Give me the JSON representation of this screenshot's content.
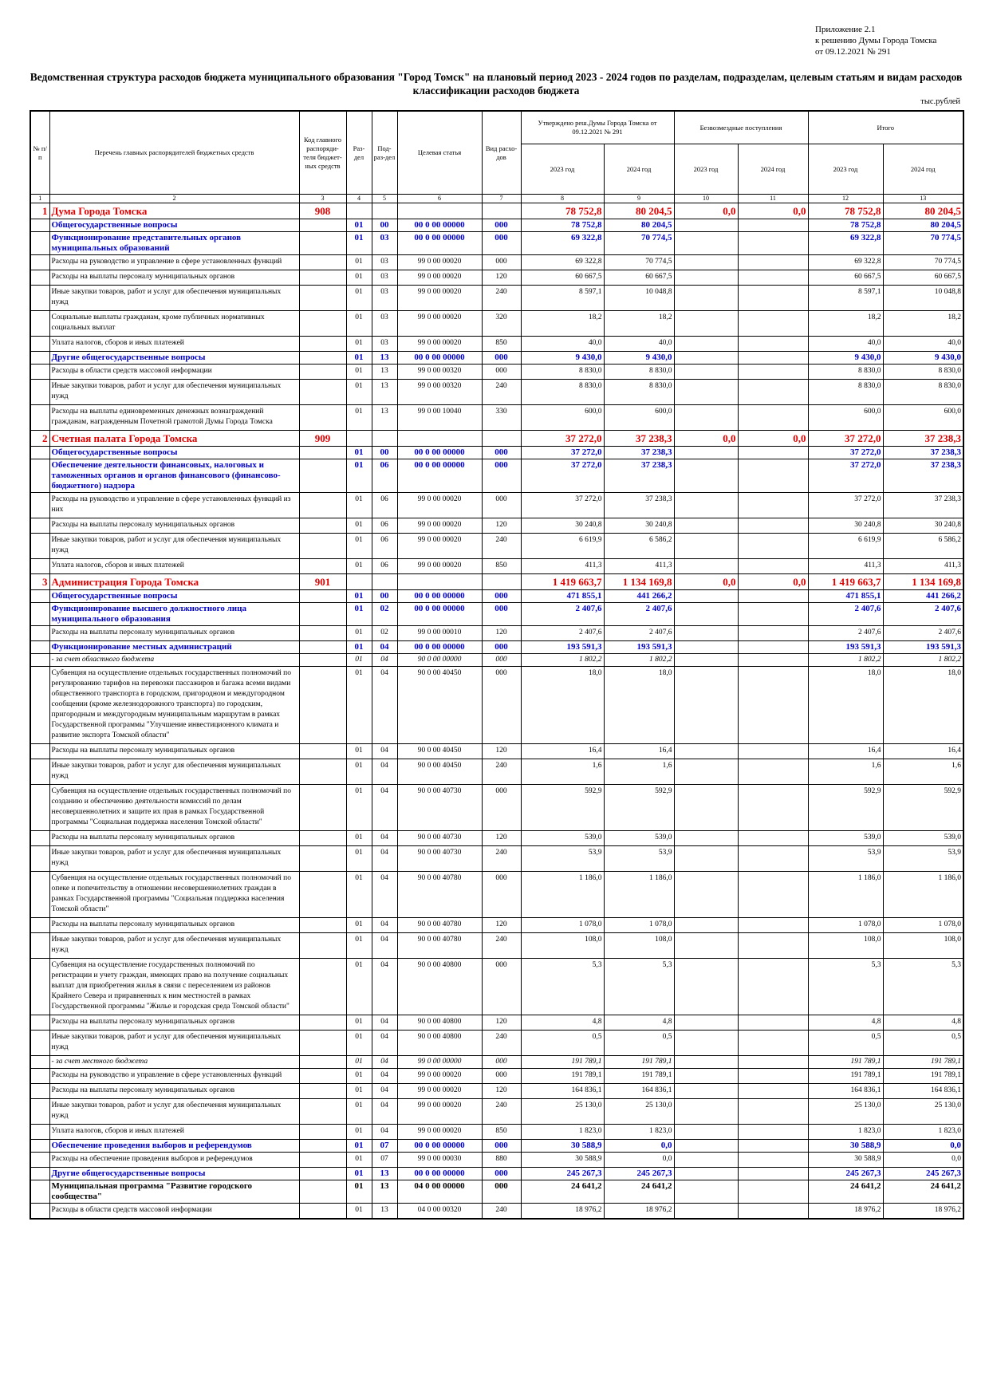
{
  "header": {
    "lines": [
      "Приложение 2.1",
      "к решению Думы Города Томска",
      "от 09.12.2021 № 291"
    ],
    "title": "Ведомственная структура расходов бюджета муниципального образования \"Город Томск\" на плановый период 2023 - 2024 годов по разделам, подразделам, целевым статьям и видам расходов классификации расходов бюджета",
    "unit": "тыс.рублей"
  },
  "table": {
    "columns": [
      "№ п/п",
      "Перечень главных распорядителей бюджетных средств",
      "Код главного распоряди-теля бюджет-ных средств",
      "Раз-дел",
      "Под-раз-дел",
      "Целевая статья",
      "Вид расхо-дов"
    ],
    "groups": [
      {
        "label": "Утверждено реш.Думы Города Томска от 09.12.2021 № 291",
        "years": [
          "2023 год",
          "2024 год"
        ]
      },
      {
        "label": "Безвозмездные поступления",
        "years": [
          "2023 год",
          "2024 год"
        ]
      },
      {
        "label": "Итого",
        "years": [
          "2023 год",
          "2024 год"
        ]
      }
    ],
    "numbers": [
      1,
      2,
      3,
      4,
      5,
      6,
      7,
      8,
      9,
      10,
      11,
      12,
      13
    ],
    "rows": [
      {
        "style": "chief",
        "cells": [
          "1",
          "Дума Города Томска",
          "908",
          null,
          null,
          null,
          null,
          "78 752,8",
          "80 204,5",
          "0,0",
          "0,0",
          "78 752,8",
          "80 204,5"
        ]
      },
      {
        "style": "blue",
        "cells": [
          null,
          "Общегосударственные вопросы",
          null,
          "01",
          "00",
          "00 0 00 00000",
          "000",
          "78 752,8",
          "80 204,5",
          null,
          null,
          "78 752,8",
          "80 204,5"
        ]
      },
      {
        "style": "blue",
        "cells": [
          null,
          "Функционирование представительных органов муниципальных образований",
          null,
          "01",
          "03",
          "00 0 00 00000",
          "000",
          "69 322,8",
          "70 774,5",
          null,
          null,
          "69 322,8",
          "70 774,5"
        ]
      },
      {
        "style": "item",
        "cells": [
          null,
          "Расходы на руководство и управление в сфере установленных функций",
          null,
          "01",
          "03",
          "99 0 00 00020",
          "000",
          "69 322,8",
          "70 774,5",
          null,
          null,
          "69 322,8",
          "70 774,5"
        ]
      },
      {
        "style": "item",
        "cells": [
          null,
          "Расходы на выплаты персоналу муниципальных органов",
          null,
          "01",
          "03",
          "99 0 00 00020",
          "120",
          "60 667,5",
          "60 667,5",
          null,
          null,
          "60 667,5",
          "60 667,5"
        ]
      },
      {
        "style": "item",
        "cells": [
          null,
          "Иные закупки товаров, работ и услуг для обеспечения муниципальных нужд",
          null,
          "01",
          "03",
          "99 0 00 00020",
          "240",
          "8 597,1",
          "10 048,8",
          null,
          null,
          "8 597,1",
          "10 048,8"
        ]
      },
      {
        "style": "item",
        "cells": [
          null,
          "Социальные выплаты гражданам, кроме публичных нормативных социальных выплат",
          null,
          "01",
          "03",
          "99 0 00 00020",
          "320",
          "18,2",
          "18,2",
          null,
          null,
          "18,2",
          "18,2"
        ]
      },
      {
        "style": "item",
        "cells": [
          null,
          "Уплата налогов, сборов и иных платежей",
          null,
          "01",
          "03",
          "99 0 00 00020",
          "850",
          "40,0",
          "40,0",
          null,
          null,
          "40,0",
          "40,0"
        ]
      },
      {
        "style": "blue",
        "cells": [
          null,
          "Другие общегосударственные вопросы",
          null,
          "01",
          "13",
          "00 0 00 00000",
          "000",
          "9 430,0",
          "9 430,0",
          null,
          null,
          "9 430,0",
          "9 430,0"
        ]
      },
      {
        "style": "item",
        "cells": [
          null,
          "Расходы в области средств массовой информации",
          null,
          "01",
          "13",
          "99 0 00 00320",
          "000",
          "8 830,0",
          "8 830,0",
          null,
          null,
          "8 830,0",
          "8 830,0"
        ]
      },
      {
        "style": "item",
        "cells": [
          null,
          "Иные закупки товаров, работ и услуг для обеспечения муниципальных нужд",
          null,
          "01",
          "13",
          "99 0 00 00320",
          "240",
          "8 830,0",
          "8 830,0",
          null,
          null,
          "8 830,0",
          "8 830,0"
        ]
      },
      {
        "style": "item",
        "cells": [
          null,
          "Расходы на выплаты единовременных денежных вознаграждений гражданам, награжденным Почетной грамотой Думы Города Томска",
          null,
          "01",
          "13",
          "99 0 00 10040",
          "330",
          "600,0",
          "600,0",
          null,
          null,
          "600,0",
          "600,0"
        ]
      },
      {
        "style": "chief",
        "cells": [
          "2",
          "Счетная палата Города Томска",
          "909",
          null,
          null,
          null,
          null,
          "37 272,0",
          "37 238,3",
          "0,0",
          "0,0",
          "37 272,0",
          "37 238,3"
        ]
      },
      {
        "style": "blue",
        "cells": [
          null,
          "Общегосударственные вопросы",
          null,
          "01",
          "00",
          "00 0 00 00000",
          "000",
          "37 272,0",
          "37 238,3",
          null,
          null,
          "37 272,0",
          "37 238,3"
        ]
      },
      {
        "style": "blue",
        "cells": [
          null,
          "Обеспечение деятельности финансовых, налоговых и таможенных органов и органов финансового (финансово-бюджетного) надзора",
          null,
          "01",
          "06",
          "00 0 00 00000",
          "000",
          "37 272,0",
          "37 238,3",
          null,
          null,
          "37 272,0",
          "37 238,3"
        ]
      },
      {
        "style": "item",
        "cells": [
          null,
          "Расходы на руководство и управление в сфере установленных функций из них",
          null,
          "01",
          "06",
          "99 0 00 00020",
          "000",
          "37 272,0",
          "37 238,3",
          null,
          null,
          "37 272,0",
          "37 238,3"
        ]
      },
      {
        "style": "item",
        "cells": [
          null,
          "Расходы на выплаты персоналу муниципальных органов",
          null,
          "01",
          "06",
          "99 0 00 00020",
          "120",
          "30 240,8",
          "30 240,8",
          null,
          null,
          "30 240,8",
          "30 240,8"
        ]
      },
      {
        "style": "item",
        "cells": [
          null,
          "Иные закупки товаров, работ и услуг для обеспечения муниципальных нужд",
          null,
          "01",
          "06",
          "99 0 00 00020",
          "240",
          "6 619,9",
          "6 586,2",
          null,
          null,
          "6 619,9",
          "6 586,2"
        ]
      },
      {
        "style": "item",
        "cells": [
          null,
          "Уплата налогов, сборов и иных платежей",
          null,
          "01",
          "06",
          "99 0 00 00020",
          "850",
          "411,3",
          "411,3",
          null,
          null,
          "411,3",
          "411,3"
        ]
      },
      {
        "style": "chief",
        "cells": [
          "3",
          "Администрация Города Томска",
          "901",
          null,
          null,
          null,
          null,
          "1 419 663,7",
          "1 134 169,8",
          "0,0",
          "0,0",
          "1 419 663,7",
          "1 134 169,8"
        ]
      },
      {
        "style": "blue",
        "cells": [
          null,
          "Общегосударственные вопросы",
          null,
          "01",
          "00",
          "00 0 00 00000",
          "000",
          "471 855,1",
          "441 266,2",
          null,
          null,
          "471 855,1",
          "441 266,2"
        ]
      },
      {
        "style": "blue",
        "cells": [
          null,
          "Функционирование высшего должностного лица муниципального образования",
          null,
          "01",
          "02",
          "00 0 00 00000",
          "000",
          "2 407,6",
          "2 407,6",
          null,
          null,
          "2 407,6",
          "2 407,6"
        ]
      },
      {
        "style": "item",
        "cells": [
          null,
          "Расходы на выплаты персоналу муниципальных органов",
          null,
          "01",
          "02",
          "99 0 00 00010",
          "120",
          "2 407,6",
          "2 407,6",
          null,
          null,
          "2 407,6",
          "2 407,6"
        ]
      },
      {
        "style": "blue",
        "cells": [
          null,
          "Функционирование местных администраций",
          null,
          "01",
          "04",
          "00 0 00 00000",
          "000",
          "193 591,3",
          "193 591,3",
          null,
          null,
          "193 591,3",
          "193 591,3"
        ]
      },
      {
        "style": "note",
        "cells": [
          null,
          "- за счет областного бюджета",
          null,
          "01",
          "04",
          "90 0 00 00000",
          "000",
          "1 802,2",
          "1 802,2",
          null,
          null,
          "1 802,2",
          "1 802,2"
        ]
      },
      {
        "style": "item",
        "cells": [
          null,
          "Субвенция на осуществление отдельных государственных полномочий по регулированию тарифов на перевозки пассажиров и багажа всеми видами общественного транспорта в городском, пригородном и междугородном сообщении (кроме железнодорожного транспорта) по городским, пригородным и междугородным муниципальным маршрутам в рамках Государственной программы \"Улучшение инвестиционного климата и развитие экспорта Томской области\"",
          null,
          "01",
          "04",
          "90 0 00 40450",
          "000",
          "18,0",
          "18,0",
          null,
          null,
          "18,0",
          "18,0"
        ]
      },
      {
        "style": "item",
        "cells": [
          null,
          "Расходы на выплаты персоналу муниципальных органов",
          null,
          "01",
          "04",
          "90 0 00 40450",
          "120",
          "16,4",
          "16,4",
          null,
          null,
          "16,4",
          "16,4"
        ]
      },
      {
        "style": "item",
        "cells": [
          null,
          "Иные закупки товаров, работ и услуг для обеспечения муниципальных нужд",
          null,
          "01",
          "04",
          "90 0 00 40450",
          "240",
          "1,6",
          "1,6",
          null,
          null,
          "1,6",
          "1,6"
        ]
      },
      {
        "style": "item",
        "cells": [
          null,
          "Субвенция на осуществление отдельных государственных полномочий по созданию и обеспечению деятельности комиссий по делам несовершеннолетних и защите их прав в рамках Государственной программы \"Социальная поддержка населения Томской области\"",
          null,
          "01",
          "04",
          "90 0 00 40730",
          "000",
          "592,9",
          "592,9",
          null,
          null,
          "592,9",
          "592,9"
        ]
      },
      {
        "style": "item",
        "cells": [
          null,
          "Расходы на выплаты персоналу муниципальных органов",
          null,
          "01",
          "04",
          "90 0 00 40730",
          "120",
          "539,0",
          "539,0",
          null,
          null,
          "539,0",
          "539,0"
        ]
      },
      {
        "style": "item",
        "cells": [
          null,
          "Иные закупки товаров, работ и услуг для обеспечения муниципальных нужд",
          null,
          "01",
          "04",
          "90 0 00 40730",
          "240",
          "53,9",
          "53,9",
          null,
          null,
          "53,9",
          "53,9"
        ]
      },
      {
        "style": "item",
        "cells": [
          null,
          "Субвенция на осуществление отдельных государственных полномочий по опеке и попечительству в отношении несовершеннолетних граждан в рамках Государственной программы \"Социальная поддержка населения Томской области\"",
          null,
          "01",
          "04",
          "90 0 00 40780",
          "000",
          "1 186,0",
          "1 186,0",
          null,
          null,
          "1 186,0",
          "1 186,0"
        ]
      },
      {
        "style": "item",
        "cells": [
          null,
          "Расходы на выплаты персоналу муниципальных органов",
          null,
          "01",
          "04",
          "90 0 00 40780",
          "120",
          "1 078,0",
          "1 078,0",
          null,
          null,
          "1 078,0",
          "1 078,0"
        ]
      },
      {
        "style": "item",
        "cells": [
          null,
          "Иные закупки товаров, работ и услуг для обеспечения муниципальных нужд",
          null,
          "01",
          "04",
          "90 0 00 40780",
          "240",
          "108,0",
          "108,0",
          null,
          null,
          "108,0",
          "108,0"
        ]
      },
      {
        "style": "item",
        "cells": [
          null,
          "Субвенция на осуществление государственных полномочий по регистрации и учету граждан, имеющих право на получение социальных выплат для приобретения жилья в связи с переселением из районов Крайнего Севера и приравненных к ним местностей в рамках Государственной программы \"Жилье и городская среда Томской области\"",
          null,
          "01",
          "04",
          "90 0 00 40800",
          "000",
          "5,3",
          "5,3",
          null,
          null,
          "5,3",
          "5,3"
        ]
      },
      {
        "style": "item",
        "cells": [
          null,
          "Расходы на выплаты персоналу муниципальных органов",
          null,
          "01",
          "04",
          "90 0 00 40800",
          "120",
          "4,8",
          "4,8",
          null,
          null,
          "4,8",
          "4,8"
        ]
      },
      {
        "style": "item",
        "cells": [
          null,
          "Иные закупки товаров, работ и услуг для обеспечения муниципальных нужд",
          null,
          "01",
          "04",
          "90 0 00 40800",
          "240",
          "0,5",
          "0,5",
          null,
          null,
          "0,5",
          "0,5"
        ]
      },
      {
        "style": "note",
        "cells": [
          null,
          "- за счет местного бюджета",
          null,
          "01",
          "04",
          "99 0 00 00000",
          "000",
          "191 789,1",
          "191 789,1",
          null,
          null,
          "191 789,1",
          "191 789,1"
        ]
      },
      {
        "style": "item",
        "cells": [
          null,
          "Расходы на руководство и управление в сфере установленных функций",
          null,
          "01",
          "04",
          "99 0 00 00020",
          "000",
          "191 789,1",
          "191 789,1",
          null,
          null,
          "191 789,1",
          "191 789,1"
        ]
      },
      {
        "style": "item",
        "cells": [
          null,
          "Расходы на выплаты персоналу муниципальных органов",
          null,
          "01",
          "04",
          "99 0 00 00020",
          "120",
          "164 836,1",
          "164 836,1",
          null,
          null,
          "164 836,1",
          "164 836,1"
        ]
      },
      {
        "style": "item",
        "cells": [
          null,
          "Иные закупки товаров, работ и услуг для обеспечения муниципальных нужд",
          null,
          "01",
          "04",
          "99 0 00 00020",
          "240",
          "25 130,0",
          "25 130,0",
          null,
          null,
          "25 130,0",
          "25 130,0"
        ]
      },
      {
        "style": "item",
        "cells": [
          null,
          "Уплата налогов, сборов и иных платежей",
          null,
          "01",
          "04",
          "99 0 00 00020",
          "850",
          "1 823,0",
          "1 823,0",
          null,
          null,
          "1 823,0",
          "1 823,0"
        ]
      },
      {
        "style": "blue",
        "cells": [
          null,
          "Обеспечение проведения выборов и референдумов",
          null,
          "01",
          "07",
          "00 0 00 00000",
          "000",
          "30 588,9",
          "0,0",
          null,
          null,
          "30 588,9",
          "0,0"
        ]
      },
      {
        "style": "item",
        "cells": [
          null,
          "Расходы на обеспечение проведения выборов и референдумов",
          null,
          "01",
          "07",
          "99 0 00 00030",
          "880",
          "30 588,9",
          "0,0",
          null,
          null,
          "30 588,9",
          "0,0"
        ]
      },
      {
        "style": "blue",
        "cells": [
          null,
          "Другие общегосударственные вопросы",
          null,
          "01",
          "13",
          "00 0 00 00000",
          "000",
          "245 267,3",
          "245 267,3",
          null,
          null,
          "245 267,3",
          "245 267,3"
        ]
      },
      {
        "style": "program",
        "cells": [
          null,
          "Муниципальная программа \"Развитие городского сообщества\"",
          null,
          "01",
          "13",
          "04 0 00 00000",
          "000",
          "24 641,2",
          "24 641,2",
          null,
          null,
          "24 641,2",
          "24 641,2"
        ]
      },
      {
        "style": "item",
        "cells": [
          null,
          "Расходы в области средств массовой информации",
          null,
          "01",
          "13",
          "04 0 00 00320",
          "240",
          "18 976,2",
          "18 976,2",
          null,
          null,
          "18 976,2",
          "18 976,2"
        ]
      }
    ]
  }
}
